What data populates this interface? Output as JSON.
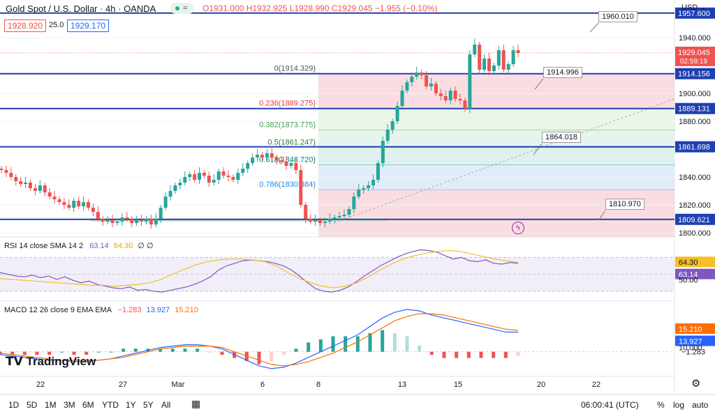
{
  "header": {
    "symbol": "Gold Spot / U.S. Dollar · 4h · OANDA",
    "ohlc": "O1931.000  H1932.925  L1928.990  C1929.045  −1.955 (−0.10%)",
    "bid": "1928.920",
    "spread": "25.0",
    "ask": "1929.170",
    "currency": "USD",
    "currency_arrow": "⌄"
  },
  "axis": {
    "price_ticks": [
      "1940.000",
      "1900.000",
      "1880.000",
      "1840.000",
      "1820.000",
      "1800.000"
    ],
    "date_ticks": [
      "22",
      "27",
      "Mar",
      "6",
      "8",
      "13",
      "15",
      "20",
      "22"
    ],
    "rsi_ticks": [
      "50.00"
    ],
    "macd_ticks": [
      "10.000"
    ]
  },
  "levels": [
    {
      "label": "1957.600",
      "value": 1957.6,
      "color": "#1e3fb3"
    },
    {
      "label": "1914.156",
      "value": 1914.156,
      "color": "#1e3fb3"
    },
    {
      "label": "1889.131",
      "value": 1889.131,
      "color": "#1e3fb3"
    },
    {
      "label": "1861.698",
      "value": 1861.698,
      "color": "#1e3fb3"
    },
    {
      "label": "1809.621",
      "value": 1809.621,
      "color": "#1e3fb3"
    }
  ],
  "current_price": {
    "label": "1929.045",
    "countdown": "02:59:19",
    "value": 1929.045,
    "color": "#ef5350"
  },
  "callouts": [
    {
      "label": "1960.010"
    },
    {
      "label": "1914.996"
    },
    {
      "label": "1864.018"
    },
    {
      "label": "1810.970"
    }
  ],
  "fib": [
    {
      "label": "0(1914.329)",
      "value": 1914.329,
      "color": "#555555"
    },
    {
      "label": "0.236(1889.275)",
      "value": 1889.275,
      "color": "#e53935"
    },
    {
      "label": "0.382(1873.775)",
      "value": 1873.775,
      "color": "#43a047"
    },
    {
      "label": "0.5(1861.247)",
      "value": 1861.247,
      "color": "#2e7d32"
    },
    {
      "label": "0.618(1848.720)",
      "value": 1848.72,
      "color": "#00897b"
    },
    {
      "label": "0.786(1830.884)",
      "value": 1830.884,
      "color": "#1e88e5"
    }
  ],
  "rsi": {
    "title": "RSI 14 close SMA 14 2",
    "rsi_value": "63.14",
    "sma_value": "64.30",
    "extra": "∅ ∅",
    "rsi_color": "#7e57c2",
    "sma_color": "#f4c025"
  },
  "macd": {
    "title": "MACD 12 26 close 9 EMA EMA",
    "hist_value": "−1.283",
    "macd_value": "13.927",
    "signal_value": "15.210",
    "hist_label_color": "#ef5350",
    "macd_color": "#2962ff",
    "signal_color": "#ff6d00"
  },
  "bottom_bar": {
    "timeframes": [
      "1D",
      "5D",
      "1M",
      "3M",
      "6M",
      "YTD",
      "1Y",
      "5Y",
      "All"
    ],
    "clock": "06:00:41 (UTC)",
    "pct": "%",
    "log": "log",
    "auto": "auto"
  },
  "branding": {
    "logo_text": "TradingView"
  },
  "chart_data": {
    "type": "candlestick",
    "title": "Gold Spot / U.S. Dollar · 4h · OANDA",
    "x_ticks": [
      "22",
      "27",
      "Mar",
      "6",
      "8",
      "13",
      "15",
      "20",
      "22"
    ],
    "y_ticks": [
      1800,
      1820,
      1840,
      1880,
      1900,
      1940
    ],
    "ylim": [
      1797,
      1967
    ],
    "close_series": [
      1845,
      1843,
      1840,
      1837,
      1835,
      1836,
      1832,
      1830,
      1834,
      1829,
      1826,
      1824,
      1822,
      1820,
      1818,
      1823,
      1819,
      1822,
      1818,
      1815,
      1810,
      1808,
      1809,
      1807,
      1808,
      1811,
      1810,
      1807,
      1809,
      1808,
      1810,
      1806,
      1810,
      1818,
      1826,
      1830,
      1834,
      1836,
      1840,
      1842,
      1838,
      1843,
      1841,
      1836,
      1838,
      1844,
      1841,
      1840,
      1838,
      1843,
      1846,
      1850,
      1854,
      1856,
      1854,
      1857,
      1854,
      1852,
      1851,
      1848,
      1850,
      1845,
      1820,
      1810,
      1808,
      1809,
      1807,
      1808,
      1810,
      1811,
      1812,
      1813,
      1817,
      1826,
      1831,
      1832,
      1834,
      1838,
      1850,
      1866,
      1874,
      1880,
      1891,
      1902,
      1908,
      1912,
      1915,
      1913,
      1905,
      1907,
      1900,
      1898,
      1895,
      1902,
      1896,
      1895,
      1889,
      1928,
      1935,
      1917,
      1925,
      1916,
      1920,
      1931,
      1917,
      1921,
      1931,
      1929
    ],
    "rsi_series": [
      52,
      50,
      48,
      47,
      49,
      46,
      48,
      44,
      47,
      43,
      40,
      42,
      38,
      36,
      34,
      33,
      35,
      31,
      32,
      30,
      29,
      31,
      33,
      35,
      38,
      42,
      47,
      55,
      60,
      63,
      66,
      67,
      66,
      65,
      63,
      60,
      55,
      48,
      40,
      33,
      30,
      29,
      31,
      35,
      41,
      48,
      54,
      60,
      65,
      70,
      74,
      77,
      79,
      78,
      76,
      72,
      68,
      70,
      66,
      65,
      67,
      63,
      62,
      64,
      63
    ],
    "rsi_sma_series": [
      45,
      44,
      43,
      42,
      41,
      40,
      39,
      38,
      37,
      37,
      36,
      37,
      38,
      40,
      44,
      50,
      56,
      61,
      65,
      67,
      68,
      68,
      67,
      65,
      60,
      52,
      45,
      40,
      36,
      34,
      36,
      40,
      47,
      55,
      62,
      68,
      72,
      75,
      77,
      78,
      77,
      74,
      71,
      68,
      66,
      64
    ],
    "macd_series": [
      -2,
      -3,
      -4,
      -5,
      -6,
      -6,
      -7,
      -7,
      -6,
      -5,
      -3,
      -1,
      1,
      3,
      4,
      5,
      5,
      4,
      2,
      -2,
      -6,
      -10,
      -12,
      -11,
      -8,
      -4,
      0,
      4,
      8,
      12,
      18,
      24,
      28,
      30,
      29,
      26,
      24,
      22,
      20,
      18,
      16,
      14,
      13.9
    ],
    "signal_series": [
      -1,
      -2,
      -3,
      -4,
      -5,
      -6,
      -6,
      -6,
      -6,
      -5,
      -4,
      -2,
      0,
      2,
      3,
      4,
      4,
      4,
      3,
      0,
      -3,
      -6,
      -9,
      -10,
      -9,
      -7,
      -4,
      -1,
      3,
      7,
      12,
      17,
      22,
      25,
      27,
      27,
      26,
      24,
      22,
      20,
      18,
      16,
      15.2
    ]
  }
}
